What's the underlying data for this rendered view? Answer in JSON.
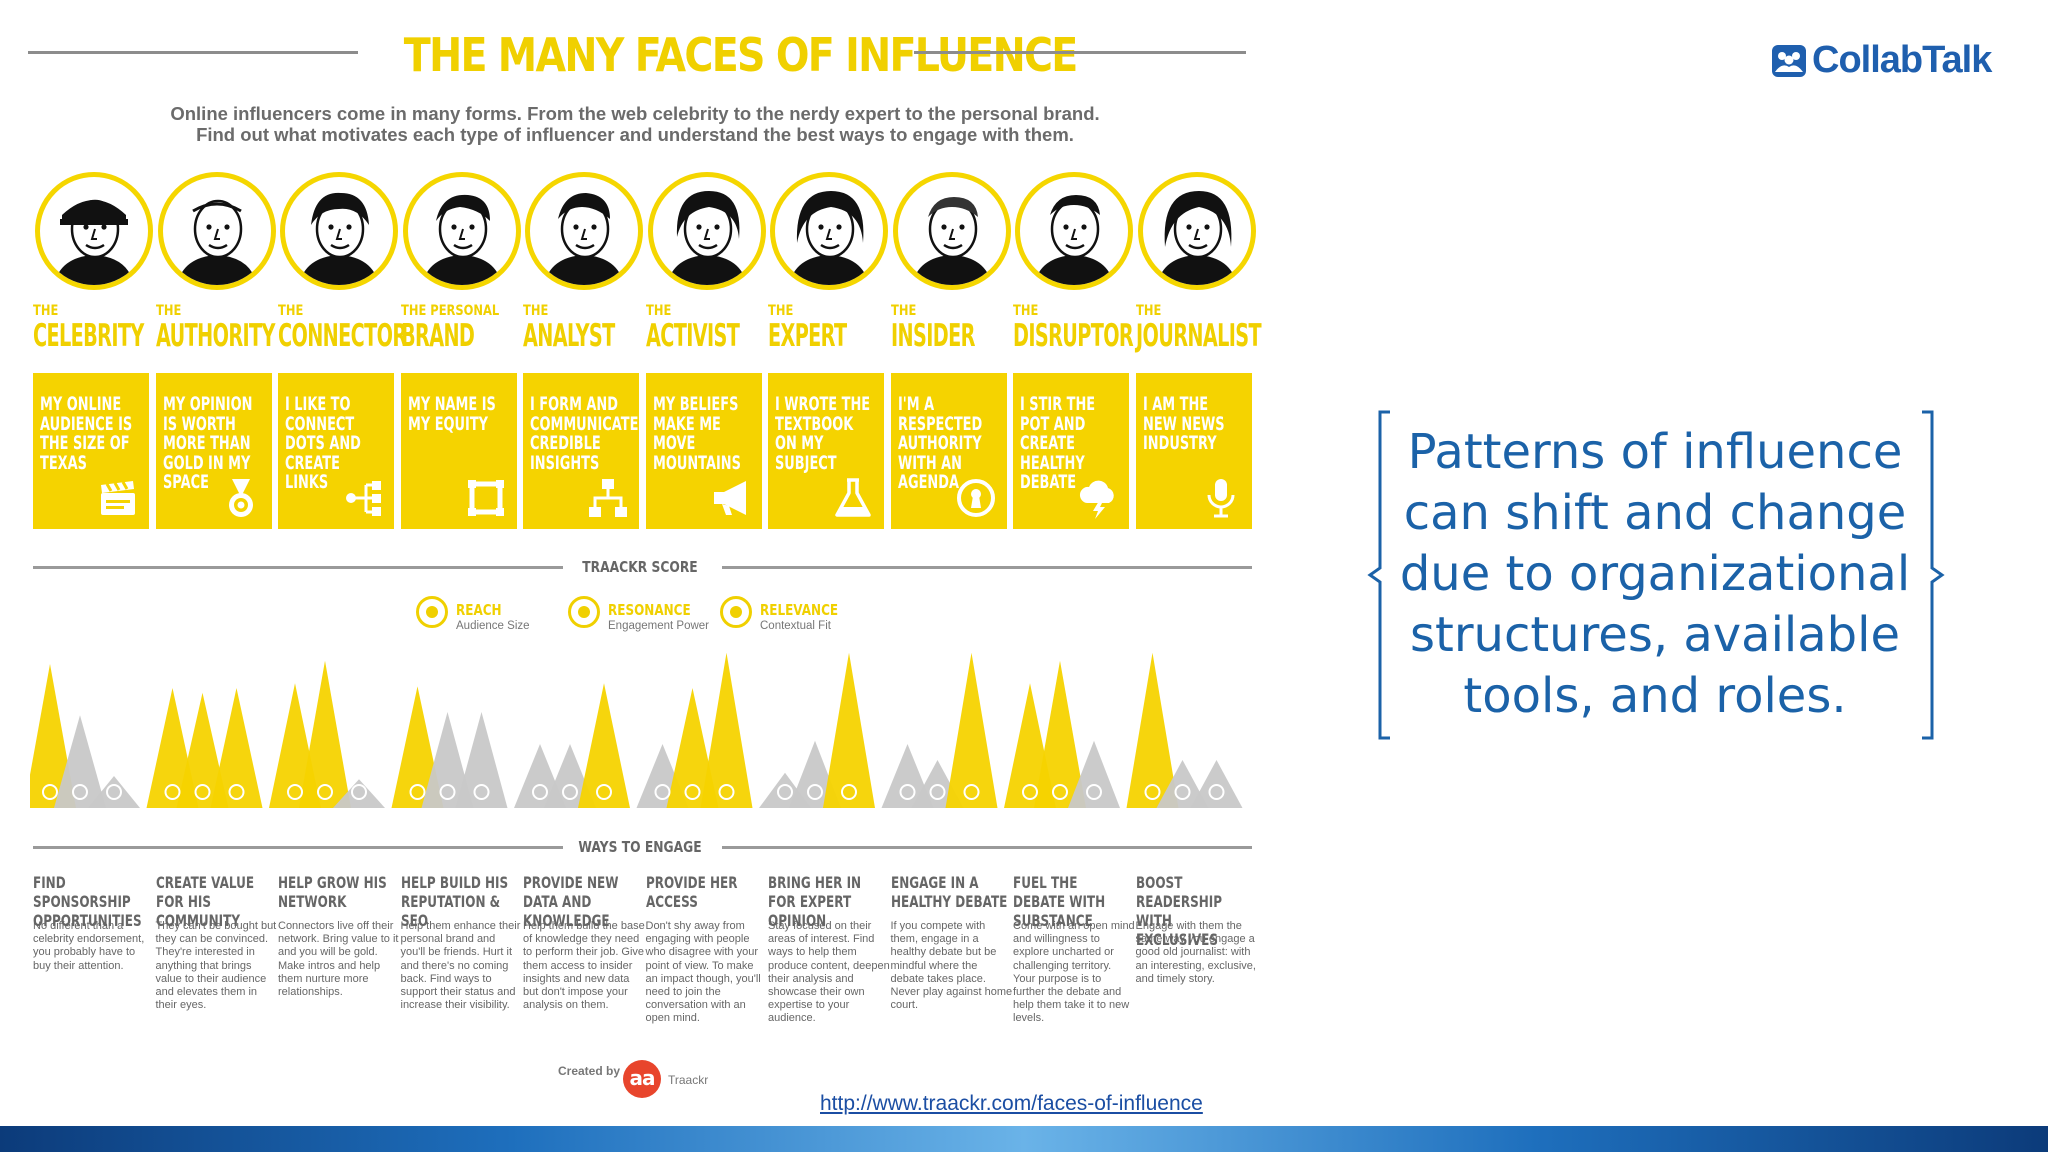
{
  "infographic": {
    "title": "THE MANY FACES OF INFLUENCE",
    "subtitle_line1": "Online influencers come in many forms. From the web celebrity to the nerdy expert to the personal brand.",
    "subtitle_line2": "Find out what motivates each type of influencer and understand the best ways to engage with them.",
    "accent_color": "#f5d300",
    "neutral_color": "#c8c8c8",
    "profiles": [
      {
        "the": "THE",
        "name": "CELEBRITY",
        "motto": "MY ONLINE AUDIENCE IS THE SIZE OF TEXAS",
        "icon": "clapperboard-icon",
        "peaks": [
          {
            "c": "y",
            "h": 0.9
          },
          {
            "c": "g",
            "h": 0.58
          },
          {
            "c": "g",
            "h": 0.2
          }
        ],
        "engage_title": "FIND SPONSORSHIP OPPORTUNITIES",
        "engage_text": "No different than a celebrity endorsement, you probably have to buy their attention."
      },
      {
        "the": "THE",
        "name": "AUTHORITY",
        "motto": "MY OPINION IS WORTH MORE THAN GOLD IN MY SPACE",
        "icon": "medal-icon",
        "peaks": [
          {
            "c": "y",
            "h": 0.75
          },
          {
            "c": "y",
            "h": 0.72
          },
          {
            "c": "y",
            "h": 0.75
          }
        ],
        "engage_title": "CREATE VALUE FOR HIS COMMUNITY",
        "engage_text": "They can't be bought but they can be convinced. They're interested in anything that brings value to their audience and elevates them in their eyes."
      },
      {
        "the": "THE",
        "name": "CONNECTOR",
        "motto": "I LIKE TO CONNECT DOTS AND CREATE LINKS",
        "icon": "share-icon",
        "peaks": [
          {
            "c": "y",
            "h": 0.78
          },
          {
            "c": "y",
            "h": 0.92
          },
          {
            "c": "g",
            "h": 0.18
          }
        ],
        "engage_title": "HELP GROW HIS NETWORK",
        "engage_text": "Connectors live off their network. Bring value to it and you will be gold. Make intros and help them nurture more relationships."
      },
      {
        "the": "THE PERSONAL",
        "name": "BRAND",
        "motto": "MY NAME IS MY EQUITY",
        "icon": "frame-icon",
        "peaks": [
          {
            "c": "y",
            "h": 0.76
          },
          {
            "c": "g",
            "h": 0.6
          },
          {
            "c": "g",
            "h": 0.6
          }
        ],
        "engage_title": "HELP BUILD HIS REPUTATION & SEO",
        "engage_text": "Help them enhance their personal brand and you'll be friends. Hurt it and there's no coming back. Find ways to support their status and increase their visibility."
      },
      {
        "the": "THE",
        "name": "ANALYST",
        "motto": "I FORM AND COMMUNICATE CREDIBLE INSIGHTS",
        "icon": "flowchart-icon",
        "peaks": [
          {
            "c": "g",
            "h": 0.4
          },
          {
            "c": "g",
            "h": 0.4
          },
          {
            "c": "y",
            "h": 0.78
          }
        ],
        "engage_title": "PROVIDE NEW DATA AND KNOWLEDGE",
        "engage_text": "Help them build the base of knowledge they need to perform their job. Give them access to insider insights and new data but don't impose your analysis on them."
      },
      {
        "the": "THE",
        "name": "ACTIVIST",
        "motto": "MY BELIEFS MAKE ME MOVE MOUNTAINS",
        "icon": "megaphone-icon",
        "peaks": [
          {
            "c": "g",
            "h": 0.4
          },
          {
            "c": "y",
            "h": 0.75
          },
          {
            "c": "y",
            "h": 0.97
          }
        ],
        "engage_title": "PROVIDE HER ACCESS",
        "engage_text": "Don't shy away from engaging with people who disagree with your point of view. To make an impact though, you'll need to join the conversation with an open mind."
      },
      {
        "the": "THE",
        "name": "EXPERT",
        "motto": "I WROTE THE TEXTBOOK ON MY SUBJECT",
        "icon": "flask-icon",
        "peaks": [
          {
            "c": "g",
            "h": 0.22
          },
          {
            "c": "g",
            "h": 0.42
          },
          {
            "c": "y",
            "h": 0.97
          }
        ],
        "engage_title": "BRING HER IN FOR EXPERT OPINION",
        "engage_text": "Stay focused on their areas of interest. Find ways to help them produce content, deepen their analysis and showcase their own expertise to your audience."
      },
      {
        "the": "THE",
        "name": "INSIDER",
        "motto": "I'M A RESPECTED AUTHORITY WITH AN AGENDA",
        "icon": "keyhole-icon",
        "peaks": [
          {
            "c": "g",
            "h": 0.4
          },
          {
            "c": "g",
            "h": 0.3
          },
          {
            "c": "y",
            "h": 0.97
          }
        ],
        "engage_title": "ENGAGE IN A HEALTHY DEBATE",
        "engage_text": "If you compete with them, engage in a healthy debate but be mindful where the debate takes place. Never play against home court."
      },
      {
        "the": "THE",
        "name": "DISRUPTOR",
        "motto": "I STIR THE POT AND CREATE HEALTHY DEBATE",
        "icon": "cloud-bolt-icon",
        "peaks": [
          {
            "c": "y",
            "h": 0.78
          },
          {
            "c": "y",
            "h": 0.92
          },
          {
            "c": "g",
            "h": 0.42
          }
        ],
        "engage_title": "FUEL THE DEBATE WITH SUBSTANCE",
        "engage_text": "Come with an open mind and willingness to explore uncharted or challenging territory. Your purpose is to further the debate and help them take it to new levels."
      },
      {
        "the": "THE",
        "name": "JOURNALIST",
        "motto": "I AM THE NEW NEWS INDUSTRY",
        "icon": "microphone-icon",
        "peaks": [
          {
            "c": "y",
            "h": 0.97
          },
          {
            "c": "g",
            "h": 0.3
          },
          {
            "c": "g",
            "h": 0.3
          }
        ],
        "engage_title": "BOOST READERSHIP WITH EXCLUSIVES",
        "engage_text": "Engage with them the same way you engage a good old journalist: with an interesting, exclusive, and timely story."
      }
    ],
    "score_heading": "TRAACKR SCORE",
    "legend": [
      {
        "label": "REACH",
        "sub": "Audience Size",
        "icon": "reach-icon"
      },
      {
        "label": "RESONANCE",
        "sub": "Engagement Power",
        "icon": "resonance-icon"
      },
      {
        "label": "RELEVANCE",
        "sub": "Contextual Fit",
        "icon": "relevance-icon"
      }
    ],
    "engage_heading": "WAYS TO ENGAGE",
    "created_by": "Created by",
    "creator_logo": "aa",
    "creator_name": "Traackr"
  },
  "source_link": "http://www.traackr.com/faces-of-influence",
  "brand": {
    "name": "CollabTalk",
    "color": "#1f5fae"
  },
  "quote": "Patterns of influence can shift and change due to organizational structures, available tools, and roles.",
  "quote_color": "#1b62a8"
}
